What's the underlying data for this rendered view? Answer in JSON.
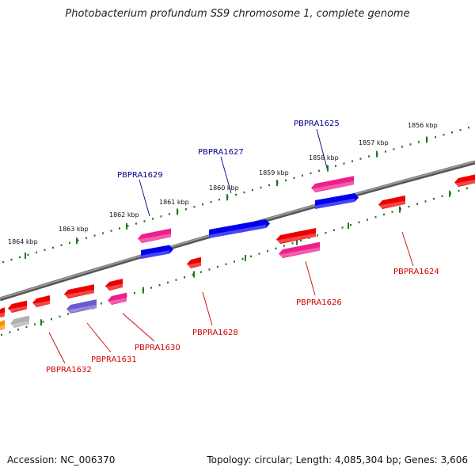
{
  "title": "Photobacterium profundum SS9 chromosome 1, complete genome",
  "footer": {
    "accession": "Accession: NC_006370",
    "stats": "Topology: circular; Length: 4,085,304 bp; Genes: 3,606"
  },
  "colors": {
    "backbone": "#7a7a7a",
    "ticks": "#1e7a1e",
    "label_plus": "#00008b",
    "label_minus": "#cc0000",
    "red": "#ee0000",
    "pink": "#ee1f8c",
    "blue": "#0000ee",
    "lavender": "#6a5acd",
    "gray": "#b0b0b0",
    "orange": "#ff8c00"
  },
  "kbp_labels": [
    {
      "text": "1856 kbp"
    },
    {
      "text": "1857 kbp"
    },
    {
      "text": "1858 kbp"
    },
    {
      "text": "1859 kbp"
    },
    {
      "text": "1860 kbp"
    },
    {
      "text": "1861 kbp"
    },
    {
      "text": "1862 kbp"
    },
    {
      "text": "1863 kbp"
    },
    {
      "text": "1864 kbp"
    }
  ],
  "gene_labels": [
    {
      "text": "PBPRA1625",
      "strand": "plus"
    },
    {
      "text": "PBPRA1627",
      "strand": "plus"
    },
    {
      "text": "PBPRA1629",
      "strand": "plus"
    },
    {
      "text": "PBPRA1624",
      "strand": "minus"
    },
    {
      "text": "PBPRA1626",
      "strand": "minus"
    },
    {
      "text": "PBPRA1628",
      "strand": "minus"
    },
    {
      "text": "PBPRA1630",
      "strand": "minus"
    },
    {
      "text": "PBPRA1631",
      "strand": "minus"
    },
    {
      "text": "PBPRA1632",
      "strand": "minus"
    }
  ]
}
